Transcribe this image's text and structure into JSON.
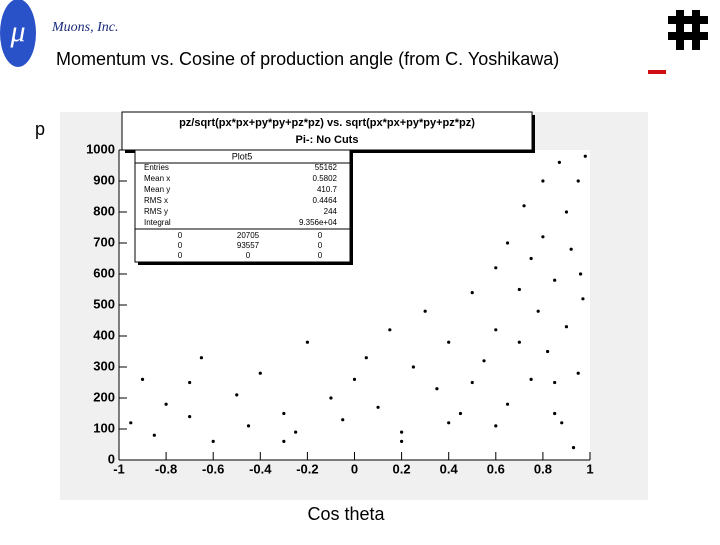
{
  "header": "Muons, Inc.",
  "slide_title": "Momentum vs. Cosine of production angle (from C. Yoshikawa)",
  "chart_data": {
    "type": "scatter",
    "title": "pz/sqrt(px*px+py*py+pz*pz) vs. sqrt(px*px+py*py+pz*pz)",
    "subtitle": "Pi-: No Cuts",
    "x_label": "Cos theta",
    "y_label": "p",
    "color": "#000000",
    "x": [
      -0.95,
      -0.9,
      -0.85,
      -0.8,
      -0.7,
      -0.65,
      -0.6,
      -0.5,
      -0.45,
      -0.4,
      -0.3,
      -0.25,
      -0.2,
      -0.1,
      -0.05,
      0,
      0.05,
      0.1,
      0.15,
      0.2,
      0.25,
      0.3,
      0.35,
      0.4,
      0.45,
      0.5,
      0.5,
      0.55,
      0.6,
      0.6,
      0.65,
      0.65,
      0.7,
      0.7,
      0.72,
      0.75,
      0.75,
      0.78,
      0.8,
      0.8,
      0.82,
      0.85,
      0.85,
      0.87,
      0.9,
      0.9,
      0.92,
      0.95,
      0.95,
      0.97,
      0.98,
      0.6,
      0.4,
      0.2,
      -0.3,
      -0.7,
      0.85,
      0.93,
      0.88,
      0.96
    ],
    "y": [
      120,
      260,
      80,
      180,
      140,
      330,
      60,
      210,
      110,
      280,
      150,
      90,
      380,
      200,
      130,
      260,
      330,
      170,
      420,
      90,
      300,
      480,
      230,
      380,
      150,
      540,
      250,
      320,
      620,
      420,
      180,
      700,
      380,
      550,
      820,
      260,
      650,
      480,
      900,
      720,
      350,
      150,
      580,
      960,
      800,
      430,
      680,
      280,
      900,
      520,
      980,
      110,
      120,
      60,
      60,
      250,
      250,
      40,
      120,
      600
    ],
    "xlim": [
      -1,
      1
    ],
    "ylim": [
      0,
      1000
    ],
    "xticks": [
      -1,
      -0.8,
      -0.6,
      -0.4,
      -0.2,
      0,
      0.2,
      0.4,
      0.6,
      0.8,
      1
    ],
    "yticks": [
      0,
      100,
      200,
      300,
      400,
      500,
      600,
      700,
      800,
      900,
      1000
    ],
    "stats": {
      "name": "Plot5",
      "rows": [
        [
          "Entries",
          55162
        ],
        [
          "Mean x",
          0.5802
        ],
        [
          "Mean y",
          410.7
        ],
        [
          "RMS x",
          0.4464
        ],
        [
          "RMS y",
          244
        ],
        [
          "Integral",
          "9.356e+04"
        ]
      ],
      "grid": [
        [
          0,
          20705,
          0
        ],
        [
          0,
          93557,
          0
        ],
        [
          0,
          0,
          0
        ]
      ]
    }
  }
}
